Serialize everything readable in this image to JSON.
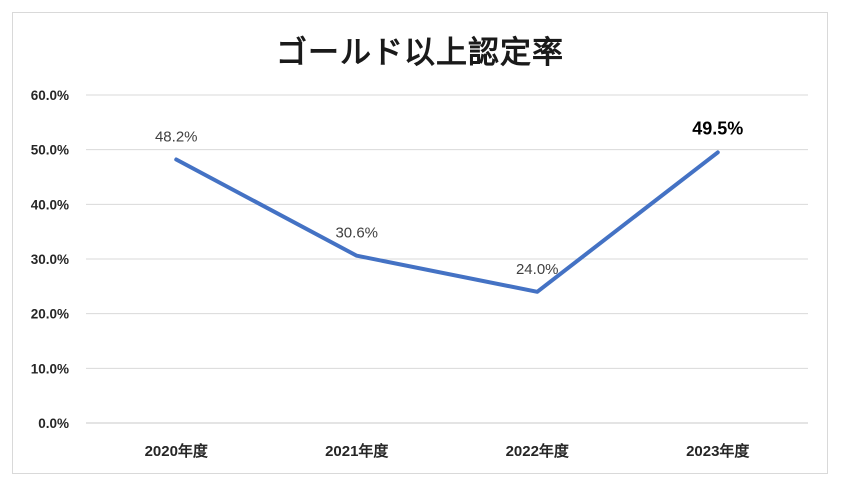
{
  "chart_data": {
    "type": "line",
    "title": "ゴールド以上認定率",
    "categories": [
      "2020年度",
      "2021年度",
      "2022年度",
      "2023年度"
    ],
    "series": [
      {
        "name": "ゴールド以上認定率",
        "values": [
          48.2,
          30.6,
          24.0,
          49.5
        ]
      }
    ],
    "data_labels": [
      "48.2%",
      "30.6%",
      "24.0%",
      "49.5%"
    ],
    "emphasized_label_index": 3,
    "y_ticks": [
      "60.0%",
      "50.0%",
      "40.0%",
      "30.0%",
      "20.0%",
      "10.0%",
      "0.0%"
    ],
    "y_tick_values": [
      60,
      50,
      40,
      30,
      20,
      10,
      0
    ],
    "ylim": [
      0,
      60
    ],
    "grid": true,
    "legend": "none",
    "colors": {
      "line": "#4472C4",
      "gridline": "#d9d9d9",
      "axis_text": "#262626",
      "data_label": "#404040",
      "emphasized_label": "#000000",
      "frame_border": "#d9d9d9",
      "background": "#ffffff"
    }
  }
}
